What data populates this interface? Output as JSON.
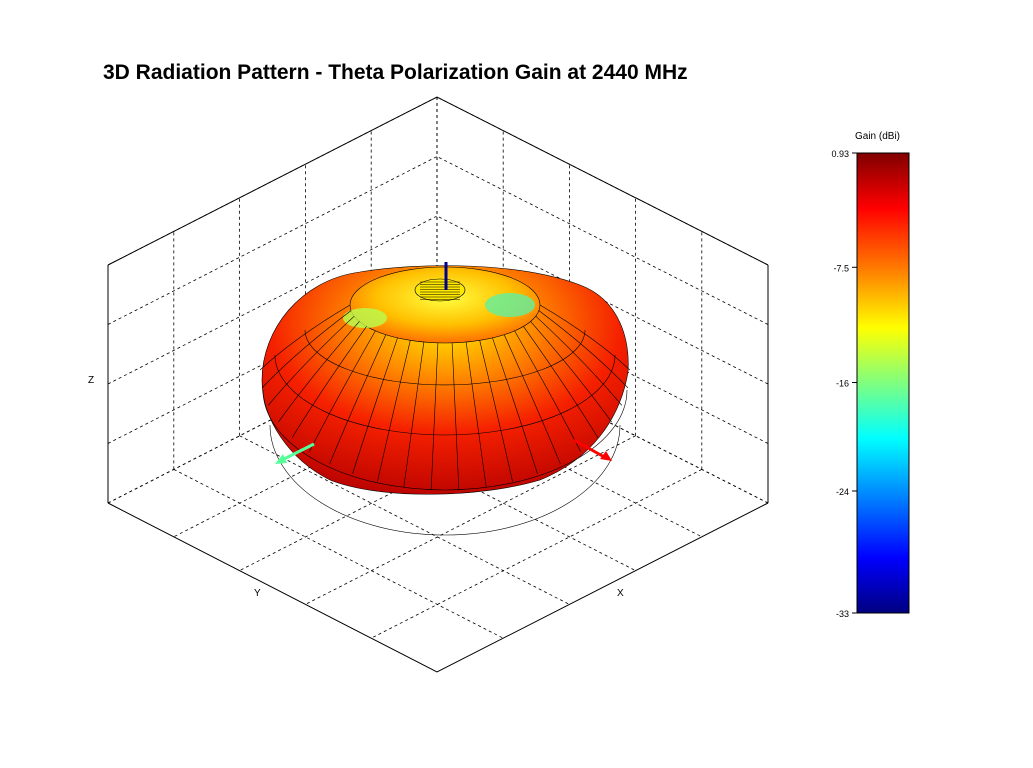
{
  "chart_data": {
    "type": "surface",
    "title": "3D Radiation Pattern - Theta Polarization Gain at 2440 MHz",
    "xlabel": "X",
    "ylabel": "Y",
    "zlabel": "Z",
    "colorbar": {
      "label": "Gain (dBi)",
      "ticks": [
        "0.93",
        "-7.5",
        "-16",
        "-24",
        "-33"
      ],
      "range": [
        -33,
        0.93
      ],
      "colormap": "jet"
    },
    "axis_arrows": [
      {
        "axis": "x",
        "color": "#ff0000"
      },
      {
        "axis": "y",
        "color": "#55ff99"
      },
      {
        "axis": "z",
        "color": "#000088"
      }
    ],
    "grid": true
  }
}
